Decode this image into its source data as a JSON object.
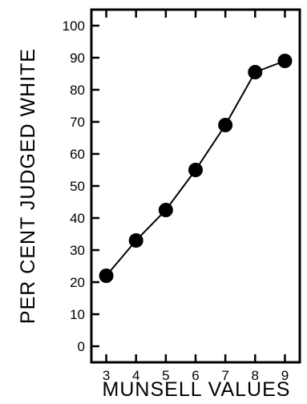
{
  "chart_data": {
    "type": "line",
    "title": "",
    "xlabel": "MUNSELL VALUES",
    "ylabel": "PER CENT JUDGED WHITE",
    "x": [
      3,
      4,
      5,
      6,
      7,
      8,
      9
    ],
    "series": [
      {
        "values": [
          22,
          33,
          42.5,
          55,
          69,
          85.5,
          89
        ]
      }
    ],
    "xlim": [
      2.5,
      9.5
    ],
    "ylim": [
      -5,
      105
    ],
    "xticks": [
      "3",
      "4",
      "5",
      "6",
      "7",
      "8",
      "9"
    ],
    "yticks": [
      "0",
      "10",
      "20",
      "30",
      "40",
      "50",
      "60",
      "70",
      "80",
      "90",
      "100"
    ],
    "grid": false,
    "legend": "none",
    "line_color": "#000000",
    "marker_color": "#000000"
  }
}
